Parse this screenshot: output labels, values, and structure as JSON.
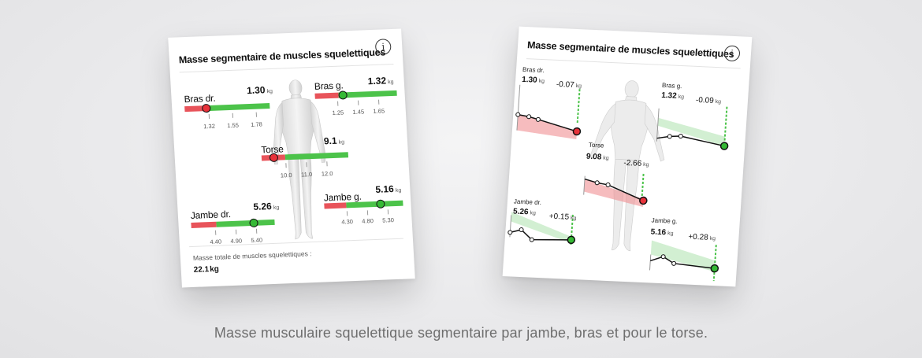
{
  "card1": {
    "title": "Masse segmentaire de muscles squelettiques",
    "info": "i",
    "segments": {
      "bras_dr": {
        "label": "Bras dr.",
        "value": "1.30",
        "unit": "kg",
        "ticks": [
          "1.32",
          "1.55",
          "1.78"
        ]
      },
      "bras_g": {
        "label": "Bras g.",
        "value": "1.32",
        "unit": "kg",
        "ticks": [
          "1.25",
          "1.45",
          "1.65"
        ]
      },
      "torse": {
        "label": "Torse",
        "value": "9.1",
        "unit": "kg",
        "ticks": [
          "10.0",
          "11.0",
          "12.0"
        ]
      },
      "jambe_dr": {
        "label": "Jambe dr.",
        "value": "5.26",
        "unit": "kg",
        "ticks": [
          "4.40",
          "4.90",
          "5.40"
        ]
      },
      "jambe_g": {
        "label": "Jambe g.",
        "value": "5.16",
        "unit": "kg",
        "ticks": [
          "4.30",
          "4.80",
          "5.30"
        ]
      }
    },
    "total_label": "Masse totale de muscles squelettiques :",
    "total_value": "22.1",
    "total_unit": "kg"
  },
  "card2": {
    "title": "Masse segmentaire de muscles squelettiques",
    "info": "i",
    "segments": {
      "bras_dr": {
        "label": "Bras dr.",
        "value": "1.30",
        "unit": "kg",
        "delta": "-0.07",
        "trend": "down"
      },
      "bras_g": {
        "label": "Bras g.",
        "value": "1.32",
        "unit": "kg",
        "delta": "-0.09",
        "trend": "down"
      },
      "torse": {
        "label": "Torse",
        "value": "9.08",
        "unit": "kg",
        "delta": "-2.66",
        "trend": "down"
      },
      "jambe_dr": {
        "label": "Jambe dr.",
        "value": "5.26",
        "unit": "kg",
        "delta": "+0.15",
        "trend": "up"
      },
      "jambe_g": {
        "label": "Jambe g.",
        "value": "5.16",
        "unit": "kg",
        "delta": "+0.28",
        "trend": "up"
      }
    }
  },
  "colors": {
    "red": "#e8535a",
    "green": "#4cc34a",
    "caption": "#6e6e6e"
  },
  "caption": "Masse musculaire squelettique segmentaire par jambe, bras et pour le torse."
}
